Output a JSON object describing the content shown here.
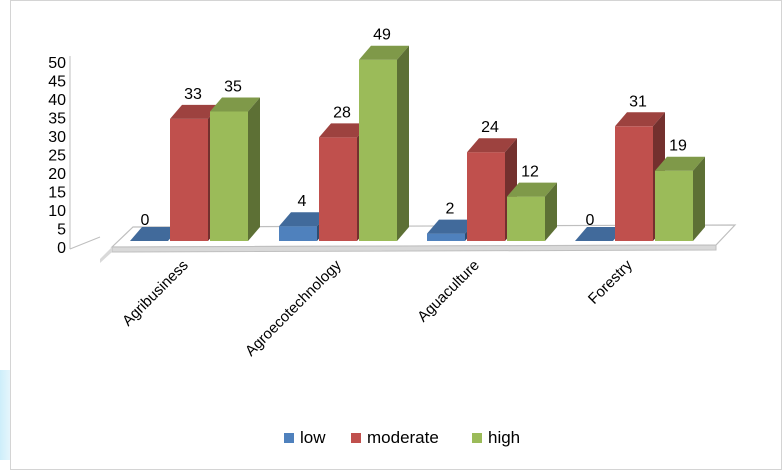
{
  "chart_data": {
    "type": "bar",
    "title": "",
    "xlabel": "",
    "ylabel": "",
    "categories": [
      "Agribusiness",
      "Agroecotechnology",
      "Aguaculture",
      "Forestry"
    ],
    "series": [
      {
        "name": "low",
        "values": [
          0,
          4,
          2,
          0
        ],
        "color": "#4F81BD"
      },
      {
        "name": "moderate",
        "values": [
          33,
          28,
          24,
          31
        ],
        "color": "#C0504D"
      },
      {
        "name": "high",
        "values": [
          35,
          49,
          12,
          19
        ],
        "color": "#9BBB59"
      }
    ],
    "ylim": [
      0,
      50
    ],
    "yticks": [
      0,
      5,
      10,
      15,
      20,
      25,
      30,
      35,
      40,
      45,
      50
    ],
    "style": "3d-clustered-column",
    "grid": false,
    "legend_position": "bottom"
  }
}
